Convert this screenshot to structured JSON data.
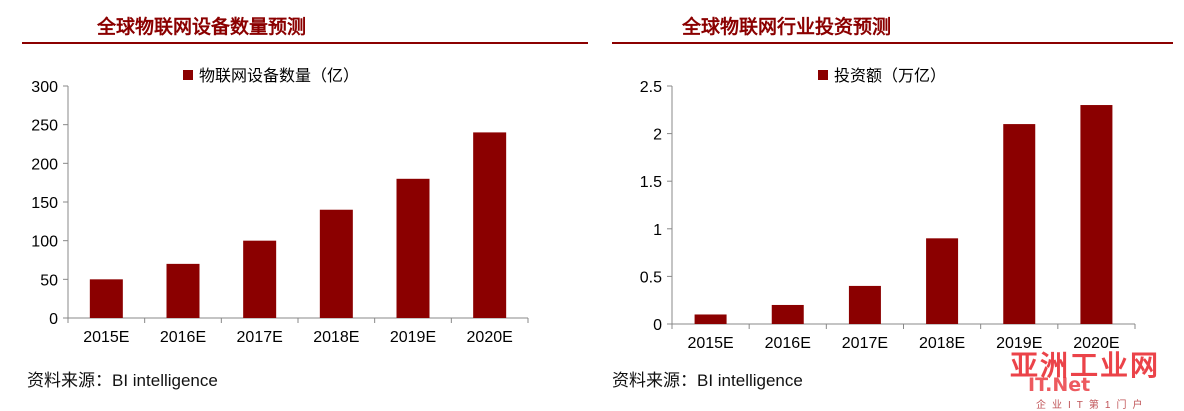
{
  "chart_data": [
    {
      "type": "bar",
      "title": "全球物联网设备数量预测",
      "categories": [
        "2015E",
        "2016E",
        "2017E",
        "2018E",
        "2019E",
        "2020E"
      ],
      "series": [
        {
          "name": "物联网设备数量（亿）",
          "values": [
            50,
            70,
            100,
            140,
            180,
            240
          ]
        }
      ],
      "yticks": [
        "0",
        "50",
        "100",
        "150",
        "200",
        "250",
        "300"
      ],
      "ylim": [
        0,
        300
      ],
      "grid": false,
      "legend": "top-center",
      "color": "#8b0000"
    },
    {
      "type": "bar",
      "title": "全球物联网行业投资预测",
      "categories": [
        "2015E",
        "2016E",
        "2017E",
        "2018E",
        "2019E",
        "2020E"
      ],
      "series": [
        {
          "name": "投资额（万亿）",
          "values": [
            0.1,
            0.2,
            0.4,
            0.9,
            2.1,
            2.3
          ]
        }
      ],
      "yticks": [
        "0",
        "0.5",
        "1",
        "1.5",
        "2",
        "2.5"
      ],
      "ylim": [
        0,
        2.5
      ],
      "grid": false,
      "legend": "top-center",
      "color": "#8b0000"
    }
  ],
  "sources": [
    "资料来源：BI intelligence",
    "资料来源：BI intelligence"
  ],
  "watermark": {
    "top": "亚洲工业网",
    "mid": "IT.Net",
    "bottom": "企业IT第1门户"
  }
}
